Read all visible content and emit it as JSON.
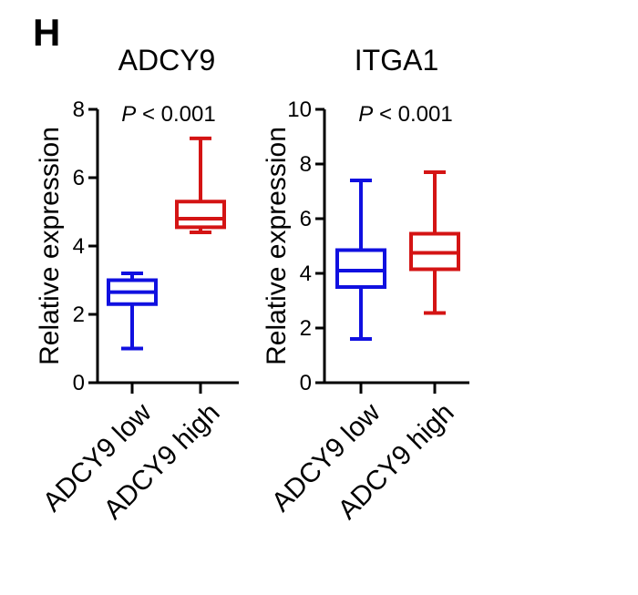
{
  "panel_label": "H",
  "chart_data": [
    {
      "type": "box",
      "title": "ADCY9",
      "annotation": {
        "prefix": "P",
        "text": " < 0.001"
      },
      "ylabel": "Relative expression",
      "ylim": [
        0,
        8
      ],
      "yticks": [
        0,
        2,
        4,
        6,
        8
      ],
      "categories": [
        "ADCY9 low",
        "ADCY9 high"
      ],
      "boxes": [
        {
          "category": "ADCY9 low",
          "color": "#1010e0",
          "min": 1.0,
          "q1": 2.3,
          "median": 2.65,
          "q3": 3.0,
          "max": 3.2
        },
        {
          "category": "ADCY9 high",
          "color": "#d41414",
          "min": 4.4,
          "q1": 4.55,
          "median": 4.8,
          "q3": 5.3,
          "max": 7.15
        }
      ]
    },
    {
      "type": "box",
      "title": "ITGA1",
      "annotation": {
        "prefix": "P",
        "text": " < 0.001"
      },
      "ylabel": "Relative expression",
      "ylim": [
        0,
        10
      ],
      "yticks": [
        0,
        2,
        4,
        6,
        8,
        10
      ],
      "categories": [
        "ADCY9 low",
        "ADCY9 high"
      ],
      "boxes": [
        {
          "category": "ADCY9 low",
          "color": "#1010e0",
          "min": 1.6,
          "q1": 3.5,
          "median": 4.1,
          "q3": 4.85,
          "max": 7.4
        },
        {
          "category": "ADCY9 high",
          "color": "#d41414",
          "min": 2.55,
          "q1": 4.15,
          "median": 4.75,
          "q3": 5.45,
          "max": 7.7
        }
      ]
    }
  ]
}
